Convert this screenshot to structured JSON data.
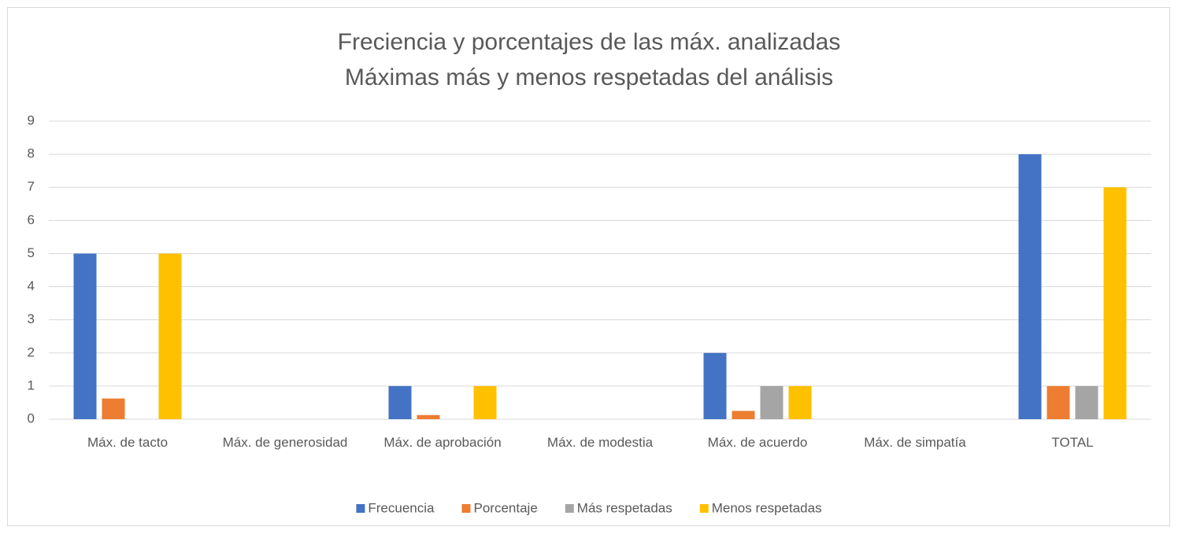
{
  "chart_data": {
    "type": "bar",
    "title": "Freciencia y porcentajes de las máx. analizadas",
    "subtitle": "Máximas más y menos respetadas del análisis",
    "categories": [
      "Máx. de tacto",
      "Máx. de generosidad",
      "Máx. de aprobación",
      "Máx. de modestia",
      "Máx. de acuerdo",
      "Máx. de simpatía",
      "TOTAL"
    ],
    "series": [
      {
        "name": "Frecuencia",
        "color": "#4472c4",
        "values": [
          5,
          0,
          1,
          0,
          2,
          0,
          8
        ]
      },
      {
        "name": "Porcentaje",
        "color": "#ed7d31",
        "values": [
          0.625,
          0,
          0.125,
          0,
          0.25,
          0,
          1
        ]
      },
      {
        "name": "Más respetadas",
        "color": "#a5a5a5",
        "values": [
          0,
          0,
          0,
          0,
          1,
          0,
          1
        ]
      },
      {
        "name": "Menos respetadas",
        "color": "#ffc000",
        "values": [
          5,
          0,
          1,
          0,
          1,
          0,
          7
        ]
      }
    ],
    "ylim": [
      0,
      9
    ],
    "yticks": [
      0,
      1,
      2,
      3,
      4,
      5,
      6,
      7,
      8,
      9
    ],
    "grid": true,
    "legend": "bottom"
  }
}
